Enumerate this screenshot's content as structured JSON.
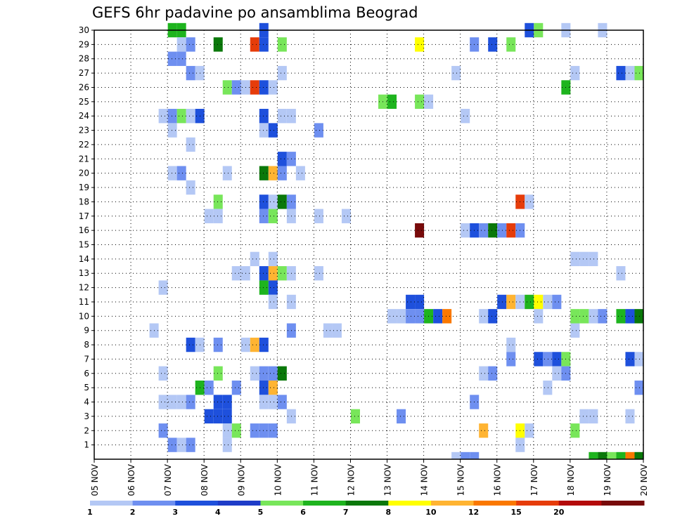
{
  "chart_data": {
    "type": "heatmap",
    "title": "GEFS 6hr padavine po ansamblima Beograd",
    "xlabel": "",
    "ylabel": "",
    "x_start_day": 5,
    "x_steps_per_day": 4,
    "x_range": [
      0,
      60
    ],
    "y_range": [
      0,
      30
    ],
    "grid": true,
    "x_tick_labels": [
      "05 NOV",
      "06 NOV",
      "07 NOV",
      "08 NOV",
      "09 NOV",
      "10 NOV",
      "11 NOV",
      "12 NOV",
      "13 NOV",
      "14 NOV",
      "15 NOV",
      "16 NOV",
      "17 NOV",
      "18 NOV",
      "19 NOV",
      "20 NOV"
    ],
    "y_tick_labels": [
      "1",
      "2",
      "3",
      "4",
      "5",
      "6",
      "7",
      "8",
      "9",
      "10",
      "11",
      "12",
      "13",
      "14",
      "15",
      "16",
      "17",
      "18",
      "19",
      "20",
      "21",
      "22",
      "23",
      "24",
      "25",
      "26",
      "27",
      "28",
      "29",
      "30"
    ],
    "legend": {
      "placement": "bottom",
      "colors": [
        "#b4c8f5",
        "#6e8ff0",
        "#1e50dc",
        "#1e3cc8",
        "#78e65a",
        "#1eb41e",
        "#0a780a",
        "#ffff00",
        "#ffb432",
        "#fa7800",
        "#e63c0a",
        "#b40a0a",
        "#780a0a"
      ],
      "labels": [
        "1",
        "2",
        "3",
        "4",
        "5",
        "6",
        "7",
        "8",
        "10",
        "12",
        "15",
        "20"
      ]
    },
    "cells": [
      {
        "member": 30,
        "step": 9,
        "color": 6
      },
      {
        "member": 30,
        "step": 10,
        "color": 6
      },
      {
        "member": 30,
        "step": 19,
        "color": 3
      },
      {
        "member": 30,
        "step": 48,
        "color": 3
      },
      {
        "member": 30,
        "step": 49,
        "color": 5
      },
      {
        "member": 30,
        "step": 52,
        "color": 1
      },
      {
        "member": 30,
        "step": 56,
        "color": 1
      },
      {
        "member": 29,
        "step": 10,
        "color": 1
      },
      {
        "member": 29,
        "step": 11,
        "color": 2
      },
      {
        "member": 29,
        "step": 14,
        "color": 7
      },
      {
        "member": 29,
        "step": 18,
        "color": 11
      },
      {
        "member": 29,
        "step": 19,
        "color": 3
      },
      {
        "member": 29,
        "step": 21,
        "color": 5
      },
      {
        "member": 29,
        "step": 36,
        "color": 8
      },
      {
        "member": 29,
        "step": 42,
        "color": 2
      },
      {
        "member": 29,
        "step": 44,
        "color": 3
      },
      {
        "member": 29,
        "step": 46,
        "color": 5
      },
      {
        "member": 28,
        "step": 9,
        "color": 2
      },
      {
        "member": 28,
        "step": 10,
        "color": 2
      },
      {
        "member": 27,
        "step": 11,
        "color": 2
      },
      {
        "member": 27,
        "step": 12,
        "color": 1
      },
      {
        "member": 27,
        "step": 21,
        "color": 1
      },
      {
        "member": 27,
        "step": 40,
        "color": 1
      },
      {
        "member": 27,
        "step": 53,
        "color": 1
      },
      {
        "member": 27,
        "step": 58,
        "color": 3
      },
      {
        "member": 27,
        "step": 59,
        "color": 1
      },
      {
        "member": 27,
        "step": 60,
        "color": 5
      },
      {
        "member": 26,
        "step": 15,
        "color": 5
      },
      {
        "member": 26,
        "step": 16,
        "color": 2
      },
      {
        "member": 26,
        "step": 17,
        "color": 1
      },
      {
        "member": 26,
        "step": 18,
        "color": 11
      },
      {
        "member": 26,
        "step": 19,
        "color": 3
      },
      {
        "member": 26,
        "step": 20,
        "color": 1
      },
      {
        "member": 26,
        "step": 52,
        "color": 6
      },
      {
        "member": 25,
        "step": 32,
        "color": 5
      },
      {
        "member": 25,
        "step": 33,
        "color": 6
      },
      {
        "member": 25,
        "step": 36,
        "color": 5
      },
      {
        "member": 25,
        "step": 37,
        "color": 1
      },
      {
        "member": 24,
        "step": 8,
        "color": 1
      },
      {
        "member": 24,
        "step": 9,
        "color": 2
      },
      {
        "member": 24,
        "step": 10,
        "color": 5
      },
      {
        "member": 24,
        "step": 11,
        "color": 1
      },
      {
        "member": 24,
        "step": 12,
        "color": 3
      },
      {
        "member": 24,
        "step": 19,
        "color": 3
      },
      {
        "member": 24,
        "step": 21,
        "color": 1
      },
      {
        "member": 24,
        "step": 22,
        "color": 1
      },
      {
        "member": 24,
        "step": 41,
        "color": 1
      },
      {
        "member": 23,
        "step": 9,
        "color": 1
      },
      {
        "member": 23,
        "step": 19,
        "color": 1
      },
      {
        "member": 23,
        "step": 20,
        "color": 3
      },
      {
        "member": 23,
        "step": 25,
        "color": 2
      },
      {
        "member": 22,
        "step": 11,
        "color": 1
      },
      {
        "member": 21,
        "step": 21,
        "color": 3
      },
      {
        "member": 21,
        "step": 22,
        "color": 2
      },
      {
        "member": 20,
        "step": 9,
        "color": 1
      },
      {
        "member": 20,
        "step": 10,
        "color": 2
      },
      {
        "member": 20,
        "step": 15,
        "color": 1
      },
      {
        "member": 20,
        "step": 19,
        "color": 7
      },
      {
        "member": 20,
        "step": 20,
        "color": 9
      },
      {
        "member": 20,
        "step": 21,
        "color": 2
      },
      {
        "member": 20,
        "step": 23,
        "color": 1
      },
      {
        "member": 19,
        "step": 11,
        "color": 1
      },
      {
        "member": 18,
        "step": 14,
        "color": 5
      },
      {
        "member": 18,
        "step": 19,
        "color": 3
      },
      {
        "member": 18,
        "step": 20,
        "color": 1
      },
      {
        "member": 18,
        "step": 21,
        "color": 7
      },
      {
        "member": 18,
        "step": 22,
        "color": 2
      },
      {
        "member": 18,
        "step": 47,
        "color": 11
      },
      {
        "member": 18,
        "step": 48,
        "color": 1
      },
      {
        "member": 17,
        "step": 13,
        "color": 1
      },
      {
        "member": 17,
        "step": 14,
        "color": 1
      },
      {
        "member": 17,
        "step": 19,
        "color": 2
      },
      {
        "member": 17,
        "step": 20,
        "color": 5
      },
      {
        "member": 17,
        "step": 22,
        "color": 1
      },
      {
        "member": 17,
        "step": 25,
        "color": 1
      },
      {
        "member": 17,
        "step": 28,
        "color": 1
      },
      {
        "member": 16,
        "step": 36,
        "color": 13
      },
      {
        "member": 16,
        "step": 41,
        "color": 1
      },
      {
        "member": 16,
        "step": 42,
        "color": 3
      },
      {
        "member": 16,
        "step": 43,
        "color": 2
      },
      {
        "member": 16,
        "step": 44,
        "color": 7
      },
      {
        "member": 16,
        "step": 45,
        "color": 2
      },
      {
        "member": 16,
        "step": 46,
        "color": 11
      },
      {
        "member": 16,
        "step": 47,
        "color": 2
      },
      {
        "member": 14,
        "step": 18,
        "color": 1
      },
      {
        "member": 14,
        "step": 20,
        "color": 1
      },
      {
        "member": 14,
        "step": 53,
        "color": 1
      },
      {
        "member": 14,
        "step": 54,
        "color": 1
      },
      {
        "member": 14,
        "step": 55,
        "color": 1
      },
      {
        "member": 13,
        "step": 16,
        "color": 1
      },
      {
        "member": 13,
        "step": 17,
        "color": 1
      },
      {
        "member": 13,
        "step": 19,
        "color": 3
      },
      {
        "member": 13,
        "step": 20,
        "color": 9
      },
      {
        "member": 13,
        "step": 21,
        "color": 5
      },
      {
        "member": 13,
        "step": 22,
        "color": 1
      },
      {
        "member": 13,
        "step": 25,
        "color": 1
      },
      {
        "member": 13,
        "step": 58,
        "color": 1
      },
      {
        "member": 12,
        "step": 8,
        "color": 1
      },
      {
        "member": 12,
        "step": 19,
        "color": 6
      },
      {
        "member": 12,
        "step": 20,
        "color": 3
      },
      {
        "member": 11,
        "step": 20,
        "color": 1
      },
      {
        "member": 11,
        "step": 22,
        "color": 1
      },
      {
        "member": 11,
        "step": 35,
        "color": 3
      },
      {
        "member": 11,
        "step": 36,
        "color": 3
      },
      {
        "member": 11,
        "step": 45,
        "color": 3
      },
      {
        "member": 11,
        "step": 46,
        "color": 9
      },
      {
        "member": 11,
        "step": 47,
        "color": 1
      },
      {
        "member": 11,
        "step": 48,
        "color": 6
      },
      {
        "member": 11,
        "step": 49,
        "color": 8
      },
      {
        "member": 11,
        "step": 50,
        "color": 1
      },
      {
        "member": 11,
        "step": 51,
        "color": 2
      },
      {
        "member": 10,
        "step": 33,
        "color": 1
      },
      {
        "member": 10,
        "step": 34,
        "color": 1
      },
      {
        "member": 10,
        "step": 35,
        "color": 2
      },
      {
        "member": 10,
        "step": 36,
        "color": 2
      },
      {
        "member": 10,
        "step": 37,
        "color": 6
      },
      {
        "member": 10,
        "step": 38,
        "color": 3
      },
      {
        "member": 10,
        "step": 39,
        "color": 10
      },
      {
        "member": 10,
        "step": 43,
        "color": 1
      },
      {
        "member": 10,
        "step": 44,
        "color": 3
      },
      {
        "member": 10,
        "step": 49,
        "color": 1
      },
      {
        "member": 10,
        "step": 53,
        "color": 5
      },
      {
        "member": 10,
        "step": 54,
        "color": 5
      },
      {
        "member": 10,
        "step": 55,
        "color": 1
      },
      {
        "member": 10,
        "step": 56,
        "color": 2
      },
      {
        "member": 10,
        "step": 58,
        "color": 6
      },
      {
        "member": 10,
        "step": 59,
        "color": 3
      },
      {
        "member": 10,
        "step": 60,
        "color": 7
      },
      {
        "member": 9,
        "step": 7,
        "color": 1
      },
      {
        "member": 9,
        "step": 22,
        "color": 2
      },
      {
        "member": 9,
        "step": 26,
        "color": 1
      },
      {
        "member": 9,
        "step": 27,
        "color": 1
      },
      {
        "member": 9,
        "step": 53,
        "color": 1
      },
      {
        "member": 8,
        "step": 11,
        "color": 3
      },
      {
        "member": 8,
        "step": 12,
        "color": 1
      },
      {
        "member": 8,
        "step": 14,
        "color": 2
      },
      {
        "member": 8,
        "step": 17,
        "color": 1
      },
      {
        "member": 8,
        "step": 18,
        "color": 9
      },
      {
        "member": 8,
        "step": 19,
        "color": 3
      },
      {
        "member": 8,
        "step": 46,
        "color": 1
      },
      {
        "member": 7,
        "step": 46,
        "color": 2
      },
      {
        "member": 7,
        "step": 49,
        "color": 3
      },
      {
        "member": 7,
        "step": 50,
        "color": 2
      },
      {
        "member": 7,
        "step": 51,
        "color": 3
      },
      {
        "member": 7,
        "step": 52,
        "color": 5
      },
      {
        "member": 7,
        "step": 59,
        "color": 3
      },
      {
        "member": 7,
        "step": 60,
        "color": 1
      },
      {
        "member": 6,
        "step": 8,
        "color": 1
      },
      {
        "member": 6,
        "step": 14,
        "color": 5
      },
      {
        "member": 6,
        "step": 18,
        "color": 1
      },
      {
        "member": 6,
        "step": 19,
        "color": 2
      },
      {
        "member": 6,
        "step": 20,
        "color": 2
      },
      {
        "member": 6,
        "step": 21,
        "color": 7
      },
      {
        "member": 6,
        "step": 43,
        "color": 1
      },
      {
        "member": 6,
        "step": 44,
        "color": 2
      },
      {
        "member": 6,
        "step": 51,
        "color": 1
      },
      {
        "member": 6,
        "step": 52,
        "color": 2
      },
      {
        "member": 5,
        "step": 12,
        "color": 6
      },
      {
        "member": 5,
        "step": 13,
        "color": 2
      },
      {
        "member": 5,
        "step": 16,
        "color": 2
      },
      {
        "member": 5,
        "step": 19,
        "color": 3
      },
      {
        "member": 5,
        "step": 20,
        "color": 9
      },
      {
        "member": 5,
        "step": 50,
        "color": 1
      },
      {
        "member": 5,
        "step": 60,
        "color": 2
      },
      {
        "member": 4,
        "step": 8,
        "color": 1
      },
      {
        "member": 4,
        "step": 9,
        "color": 1
      },
      {
        "member": 4,
        "step": 10,
        "color": 1
      },
      {
        "member": 4,
        "step": 11,
        "color": 2
      },
      {
        "member": 4,
        "step": 14,
        "color": 3
      },
      {
        "member": 4,
        "step": 15,
        "color": 3
      },
      {
        "member": 4,
        "step": 19,
        "color": 1
      },
      {
        "member": 4,
        "step": 20,
        "color": 1
      },
      {
        "member": 4,
        "step": 21,
        "color": 2
      },
      {
        "member": 4,
        "step": 42,
        "color": 2
      },
      {
        "member": 3,
        "step": 13,
        "color": 3
      },
      {
        "member": 3,
        "step": 14,
        "color": 3
      },
      {
        "member": 3,
        "step": 15,
        "color": 3
      },
      {
        "member": 3,
        "step": 22,
        "color": 1
      },
      {
        "member": 3,
        "step": 29,
        "color": 5
      },
      {
        "member": 3,
        "step": 34,
        "color": 2
      },
      {
        "member": 3,
        "step": 54,
        "color": 1
      },
      {
        "member": 3,
        "step": 55,
        "color": 1
      },
      {
        "member": 3,
        "step": 59,
        "color": 1
      },
      {
        "member": 2,
        "step": 8,
        "color": 2
      },
      {
        "member": 2,
        "step": 15,
        "color": 1
      },
      {
        "member": 2,
        "step": 16,
        "color": 5
      },
      {
        "member": 2,
        "step": 18,
        "color": 2
      },
      {
        "member": 2,
        "step": 19,
        "color": 2
      },
      {
        "member": 2,
        "step": 20,
        "color": 2
      },
      {
        "member": 2,
        "step": 43,
        "color": 9
      },
      {
        "member": 2,
        "step": 47,
        "color": 8
      },
      {
        "member": 2,
        "step": 48,
        "color": 1
      },
      {
        "member": 2,
        "step": 53,
        "color": 5
      },
      {
        "member": 1,
        "step": 9,
        "color": 2
      },
      {
        "member": 1,
        "step": 10,
        "color": 1
      },
      {
        "member": 1,
        "step": 11,
        "color": 2
      },
      {
        "member": 1,
        "step": 15,
        "color": 1
      },
      {
        "member": 1,
        "step": 47,
        "color": 1
      },
      {
        "member": 0,
        "step": 40,
        "color": 1
      },
      {
        "member": 0,
        "step": 41,
        "color": 2
      },
      {
        "member": 0,
        "step": 42,
        "color": 2
      },
      {
        "member": 0,
        "step": 55,
        "color": 6
      },
      {
        "member": 0,
        "step": 56,
        "color": 7
      },
      {
        "member": 0,
        "step": 57,
        "color": 5
      },
      {
        "member": 0,
        "step": 58,
        "color": 6
      },
      {
        "member": 0,
        "step": 59,
        "color": 10
      },
      {
        "member": 0,
        "step": 60,
        "color": 7
      }
    ]
  }
}
